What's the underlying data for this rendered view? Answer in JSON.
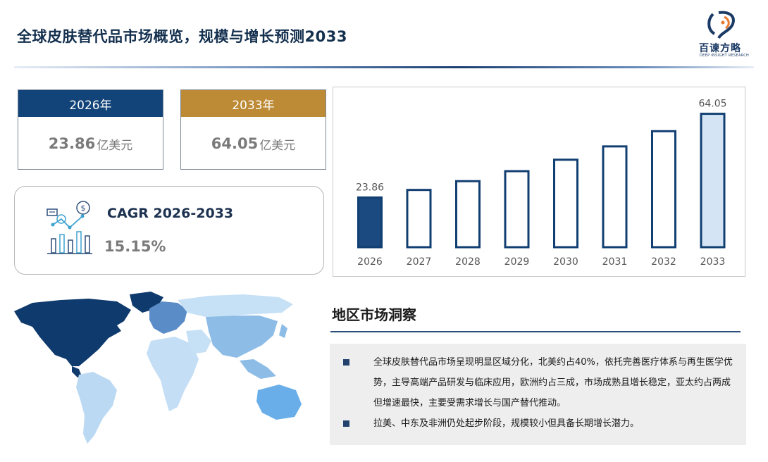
{
  "header": {
    "title": "全球皮肤替代品市场概览，规模与增长预测2033"
  },
  "logo": {
    "name": "百谏方略",
    "tagline": "DEEP INSIGHT RESEARCH"
  },
  "kpi": [
    {
      "year": "2026年",
      "value": "23.86",
      "unit": "亿美元",
      "header_color": "#124479"
    },
    {
      "year": "2033年",
      "value": "64.05",
      "unit": " 亿美元",
      "header_color": "#bd8a35"
    }
  ],
  "cagr": {
    "label": "CAGR 2026-2033",
    "value": "15.15%"
  },
  "chart_data": {
    "type": "bar",
    "categories": [
      "2026",
      "2027",
      "2028",
      "2029",
      "2030",
      "2031",
      "2032",
      "2033"
    ],
    "values": [
      23.86,
      27.5,
      31.7,
      36.5,
      42.0,
      48.4,
      55.7,
      64.05
    ],
    "data_labels": {
      "2026": "23.86",
      "2033": "64.05"
    },
    "ylim": [
      0,
      70
    ],
    "colors": {
      "first": "#1a4a80",
      "last": "#d4e4f5",
      "outline": "#123f72",
      "middle": "#ffffff"
    },
    "grid": false,
    "legend": "none"
  },
  "regions": {
    "title": "地区市场洞察",
    "bullets": [
      "全球皮肤替代品市场呈现明显区域分化，北美约占40%，依托完善医疗体系与再生医学优势，主导高端产品研发与临床应用，欧洲约占三成，市场成熟且增长稳定，亚太约占两成但增速最快，主要受需求增长与国产替代推动。",
      "拉美、中东及非洲仍处起步阶段，规模较小但具备长期增长潜力。"
    ]
  },
  "map_colors": {
    "north_america": "#0f3a6d",
    "europe": "#5a8cc8",
    "asia": "#8dbde6",
    "australia": "#69aee8",
    "south_america": "#bcd9f3",
    "africa": "#c4def5",
    "other": "#c6e0f6"
  }
}
